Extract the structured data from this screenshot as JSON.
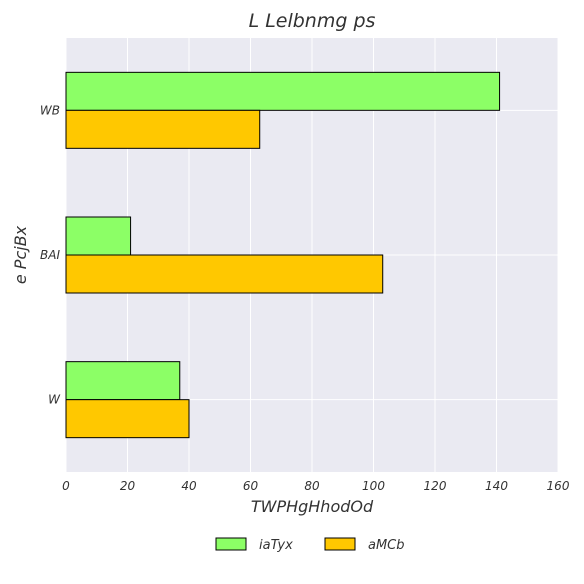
{
  "chart_data": {
    "type": "bar",
    "orientation": "horizontal",
    "title": "L Lelbnmg ps",
    "xlabel": "TWPHgHhodOd",
    "ylabel": "e PcjBx",
    "categories": [
      "W",
      "BAI",
      "WB"
    ],
    "series": [
      {
        "name": "iaTyx",
        "color": "#8cff66",
        "values": [
          37,
          21,
          141
        ]
      },
      {
        "name": "aMCb",
        "color": "#ffc800",
        "values": [
          40,
          103,
          63
        ]
      }
    ],
    "xlim": [
      0,
      160
    ],
    "xticks": [
      0,
      20,
      40,
      60,
      80,
      100,
      120,
      140,
      160
    ],
    "grid": true,
    "legend_position": "bottom-center",
    "background_color": "#eaeaf2",
    "bar_edge_color": "#000000"
  }
}
